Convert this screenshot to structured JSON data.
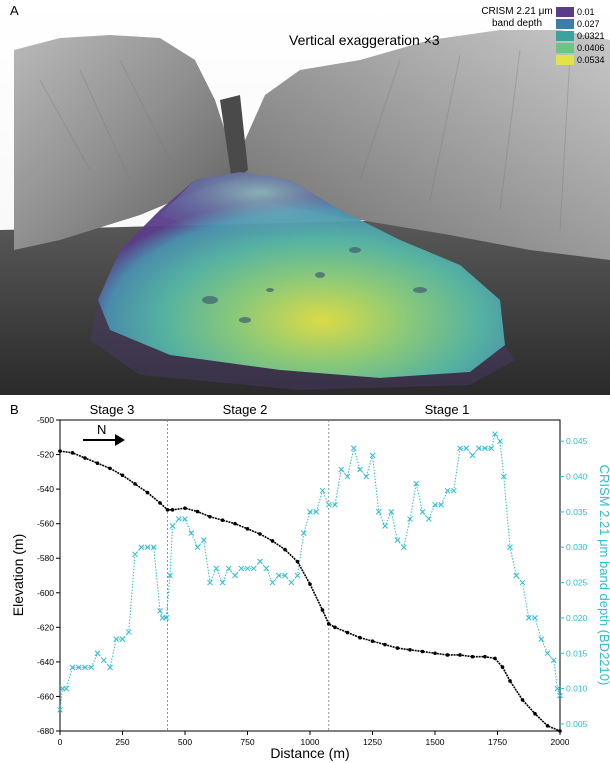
{
  "panel_a": {
    "label": "A",
    "annotation": "Vertical exaggeration ×3",
    "legend_title_line1": "CRISM 2.21 μm",
    "legend_title_line2": "band depth",
    "legend": [
      {
        "label": "0.01",
        "color": "#5a3d8a"
      },
      {
        "label": "0.027",
        "color": "#3b7fa6"
      },
      {
        "label": "0.0321",
        "color": "#3aa3a0"
      },
      {
        "label": "0.0406",
        "color": "#6cc487"
      },
      {
        "label": "0.0534",
        "color": "#e3e347"
      }
    ]
  },
  "panel_b": {
    "label": "B",
    "stage_labels": [
      "Stage 3",
      "Stage 2",
      "Stage 1"
    ],
    "north_label": "N"
  },
  "chart_data": {
    "type": "line",
    "xlabel": "Distance (m)",
    "ylabel": "Elevation (m)",
    "y2label": "CRISM 2.21 μm band depth (BD2210)",
    "xlim": [
      0,
      2000
    ],
    "ylim": [
      -680,
      -500
    ],
    "y2lim": [
      0.004,
      0.048
    ],
    "xticks": [
      0,
      250,
      500,
      750,
      1000,
      1250,
      1500,
      1750,
      2000
    ],
    "yticks": [
      -680,
      -660,
      -640,
      -620,
      -600,
      -580,
      -560,
      -540,
      -520,
      -500
    ],
    "y2ticks": [
      0.005,
      0.01,
      0.015,
      0.02,
      0.025,
      0.03,
      0.035,
      0.04,
      0.045
    ],
    "stage_boundaries": [
      430,
      1075
    ],
    "colors": {
      "elevation": "#000000",
      "band_depth": "#2bbfcf"
    },
    "series": [
      {
        "axis": "left",
        "x": [
          0,
          50,
          100,
          150,
          200,
          250,
          300,
          350,
          400,
          430,
          450,
          500,
          550,
          600,
          650,
          700,
          750,
          800,
          850,
          900,
          950,
          1000,
          1050,
          1075,
          1100,
          1150,
          1200,
          1250,
          1300,
          1350,
          1400,
          1450,
          1500,
          1550,
          1600,
          1650,
          1700,
          1740,
          1770,
          1800,
          1850,
          1900,
          1950,
          2000
        ],
        "values": [
          -518,
          -519,
          -522,
          -525,
          -528,
          -532,
          -537,
          -542,
          -548,
          -552,
          -552,
          -551,
          -553,
          -556,
          -558,
          -560,
          -563,
          -566,
          -570,
          -575,
          -582,
          -595,
          -610,
          -618,
          -620,
          -623,
          -626,
          -628,
          -630,
          -632,
          -633,
          -634,
          -635,
          -636,
          -636,
          -637,
          -637,
          -638,
          -643,
          -651,
          -662,
          -670,
          -677,
          -680
        ]
      },
      {
        "axis": "right",
        "x": [
          0,
          10,
          25,
          50,
          75,
          100,
          125,
          150,
          175,
          200,
          225,
          250,
          275,
          300,
          325,
          350,
          375,
          400,
          410,
          425,
          440,
          450,
          475,
          500,
          525,
          550,
          575,
          600,
          625,
          650,
          675,
          700,
          725,
          750,
          775,
          800,
          825,
          850,
          875,
          900,
          925,
          950,
          975,
          1000,
          1025,
          1050,
          1075,
          1100,
          1125,
          1150,
          1175,
          1200,
          1225,
          1250,
          1275,
          1300,
          1325,
          1350,
          1375,
          1400,
          1425,
          1450,
          1475,
          1500,
          1525,
          1550,
          1575,
          1600,
          1625,
          1650,
          1675,
          1700,
          1725,
          1740,
          1760,
          1775,
          1800,
          1825,
          1850,
          1875,
          1900,
          1925,
          1950,
          1975,
          1990,
          2000
        ],
        "values": [
          0.007,
          0.01,
          0.01,
          0.013,
          0.013,
          0.013,
          0.013,
          0.015,
          0.014,
          0.013,
          0.017,
          0.017,
          0.018,
          0.029,
          0.03,
          0.03,
          0.03,
          0.021,
          0.02,
          0.02,
          0.026,
          0.033,
          0.034,
          0.034,
          0.032,
          0.03,
          0.031,
          0.025,
          0.027,
          0.025,
          0.027,
          0.026,
          0.027,
          0.027,
          0.027,
          0.028,
          0.027,
          0.025,
          0.026,
          0.026,
          0.025,
          0.026,
          0.032,
          0.035,
          0.035,
          0.038,
          0.036,
          0.036,
          0.041,
          0.04,
          0.044,
          0.041,
          0.04,
          0.043,
          0.035,
          0.033,
          0.035,
          0.031,
          0.03,
          0.034,
          0.039,
          0.035,
          0.034,
          0.036,
          0.036,
          0.038,
          0.038,
          0.044,
          0.044,
          0.043,
          0.044,
          0.044,
          0.044,
          0.046,
          0.045,
          0.04,
          0.03,
          0.026,
          0.025,
          0.02,
          0.02,
          0.017,
          0.015,
          0.014,
          0.01,
          0.009
        ]
      }
    ]
  }
}
